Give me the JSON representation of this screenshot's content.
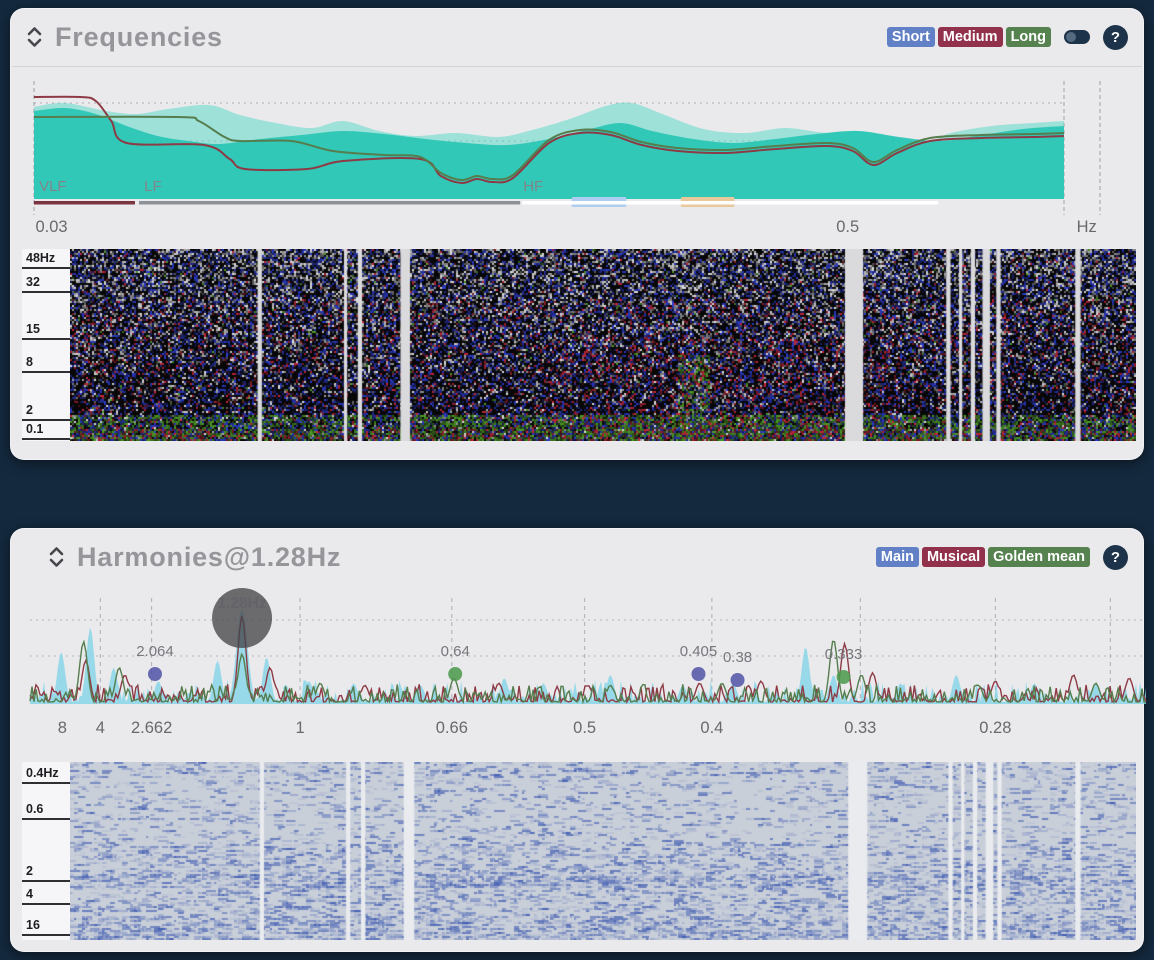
{
  "page": {
    "background": "#14293e"
  },
  "frequencies": {
    "title": "Frequencies",
    "help_label": "?",
    "legend": [
      {
        "label": "Short",
        "color": "#6180c5"
      },
      {
        "label": "Medium",
        "color": "#91314b"
      },
      {
        "label": "Long",
        "color": "#55824f"
      }
    ],
    "chart": {
      "colors": {
        "teal_front": "#23c4b2",
        "teal_back": "#5cd8c6",
        "red": "#8e3a45",
        "green": "#557d4d",
        "grid": "#9aa0a8"
      },
      "band_labels": [
        {
          "text": "VLF",
          "x": 0.003
        },
        {
          "text": "LF",
          "x": 0.105
        },
        {
          "text": "HF",
          "x": 0.473
        }
      ],
      "x_ticks": [
        {
          "text": "0.03",
          "x": 0.017
        },
        {
          "text": "0.5",
          "x": 0.79
        },
        {
          "text": "Hz",
          "x": 1.022
        }
      ],
      "series": {
        "teal_back": [
          [
            0,
            26
          ],
          [
            0.03,
            22
          ],
          [
            0.07,
            30
          ],
          [
            0.1,
            33
          ],
          [
            0.13,
            28
          ],
          [
            0.17,
            24
          ],
          [
            0.2,
            34
          ],
          [
            0.235,
            42
          ],
          [
            0.27,
            47
          ],
          [
            0.3,
            40
          ],
          [
            0.335,
            50
          ],
          [
            0.37,
            55
          ],
          [
            0.41,
            52
          ],
          [
            0.45,
            56
          ],
          [
            0.48,
            50
          ],
          [
            0.52,
            38
          ],
          [
            0.555,
            25
          ],
          [
            0.58,
            22
          ],
          [
            0.61,
            33
          ],
          [
            0.65,
            48
          ],
          [
            0.69,
            52
          ],
          [
            0.73,
            47
          ],
          [
            0.77,
            52
          ],
          [
            0.8,
            50
          ],
          [
            0.83,
            55
          ],
          [
            0.865,
            62
          ],
          [
            0.89,
            52
          ],
          [
            0.93,
            45
          ],
          [
            0.97,
            42
          ],
          [
            1,
            40
          ]
        ],
        "teal_front": [
          [
            0,
            30
          ],
          [
            0.03,
            27
          ],
          [
            0.06,
            33
          ],
          [
            0.09,
            45
          ],
          [
            0.12,
            55
          ],
          [
            0.15,
            60
          ],
          [
            0.18,
            63
          ],
          [
            0.22,
            58
          ],
          [
            0.26,
            54
          ],
          [
            0.3,
            50
          ],
          [
            0.34,
            53
          ],
          [
            0.38,
            58
          ],
          [
            0.42,
            62
          ],
          [
            0.46,
            64
          ],
          [
            0.5,
            58
          ],
          [
            0.54,
            48
          ],
          [
            0.57,
            42
          ],
          [
            0.6,
            50
          ],
          [
            0.64,
            58
          ],
          [
            0.68,
            62
          ],
          [
            0.72,
            58
          ],
          [
            0.76,
            53
          ],
          [
            0.8,
            50
          ],
          [
            0.84,
            56
          ],
          [
            0.88,
            60
          ],
          [
            0.92,
            54
          ],
          [
            0.96,
            48
          ],
          [
            1,
            45
          ]
        ],
        "red_line": [
          [
            0,
            16
          ],
          [
            0.045,
            16
          ],
          [
            0.06,
            20
          ],
          [
            0.075,
            40
          ],
          [
            0.09,
            62
          ],
          [
            0.165,
            64
          ],
          [
            0.19,
            78
          ],
          [
            0.205,
            88
          ],
          [
            0.265,
            88
          ],
          [
            0.3,
            80
          ],
          [
            0.375,
            78
          ],
          [
            0.395,
            95
          ],
          [
            0.415,
            102
          ],
          [
            0.43,
            98
          ],
          [
            0.445,
            101
          ],
          [
            0.465,
            97
          ],
          [
            0.5,
            62
          ],
          [
            0.53,
            52
          ],
          [
            0.56,
            54
          ],
          [
            0.59,
            64
          ],
          [
            0.625,
            70
          ],
          [
            0.67,
            72
          ],
          [
            0.72,
            68
          ],
          [
            0.77,
            65
          ],
          [
            0.795,
            70
          ],
          [
            0.815,
            84
          ],
          [
            0.838,
            72
          ],
          [
            0.87,
            60
          ],
          [
            0.92,
            57
          ],
          [
            0.97,
            56
          ],
          [
            1,
            55
          ]
        ],
        "green_line": [
          [
            0,
            36
          ],
          [
            0.14,
            36
          ],
          [
            0.16,
            40
          ],
          [
            0.185,
            56
          ],
          [
            0.2,
            60
          ],
          [
            0.25,
            60
          ],
          [
            0.29,
            70
          ],
          [
            0.34,
            74
          ],
          [
            0.375,
            76
          ],
          [
            0.395,
            92
          ],
          [
            0.415,
            99
          ],
          [
            0.43,
            95
          ],
          [
            0.445,
            98
          ],
          [
            0.465,
            94
          ],
          [
            0.5,
            59
          ],
          [
            0.53,
            49
          ],
          [
            0.56,
            51
          ],
          [
            0.59,
            61
          ],
          [
            0.625,
            67
          ],
          [
            0.67,
            69
          ],
          [
            0.72,
            65
          ],
          [
            0.77,
            62
          ],
          [
            0.795,
            67
          ],
          [
            0.815,
            81
          ],
          [
            0.838,
            69
          ],
          [
            0.87,
            57
          ],
          [
            0.92,
            54
          ],
          [
            0.97,
            53
          ],
          [
            1,
            52
          ]
        ]
      },
      "band_bars": [
        {
          "x0": 0.0,
          "x1": 0.098,
          "color": "#7c3440"
        },
        {
          "x0": 0.102,
          "x1": 0.472,
          "color": "#8d9298"
        },
        {
          "x0": 0.474,
          "x1": 0.878,
          "color": "#ffffff"
        }
      ],
      "markers": [
        {
          "x0": 0.522,
          "x1": 0.575,
          "color": "#aecdf0"
        },
        {
          "x0": 0.628,
          "x1": 0.68,
          "color": "#e9c99c"
        }
      ]
    },
    "spectrogram": {
      "background": "#070707",
      "gap_color": "#dadadc",
      "y_ticks": [
        {
          "text": "48Hz",
          "y": 0.1
        },
        {
          "text": "32",
          "y": 0.225
        },
        {
          "text": "15",
          "y": 0.47
        },
        {
          "text": "8",
          "y": 0.64
        },
        {
          "text": "2",
          "y": 0.89
        },
        {
          "text": "0.1",
          "y": 0.99
        }
      ],
      "gaps": [
        [
          0.176,
          0.004
        ],
        [
          0.257,
          0.003
        ],
        [
          0.27,
          0.004
        ],
        [
          0.31,
          0.009
        ],
        [
          0.727,
          0.017
        ],
        [
          0.822,
          0.004
        ],
        [
          0.834,
          0.003
        ],
        [
          0.845,
          0.004
        ],
        [
          0.856,
          0.007
        ],
        [
          0.869,
          0.004
        ],
        [
          0.943,
          0.005
        ]
      ]
    }
  },
  "harmonies": {
    "title": "Harmonies@1.28Hz",
    "help_label": "?",
    "legend": [
      {
        "label": "Main",
        "color": "#6180c5"
      },
      {
        "label": "Musical",
        "color": "#91314b"
      },
      {
        "label": "Golden mean",
        "color": "#55824f"
      }
    ],
    "chart": {
      "colors": {
        "cyan": "#82d4e6",
        "red": "#8e3a45",
        "green": "#557d4d"
      },
      "main_peak": {
        "label": "1.28Hz",
        "x": 0.19
      },
      "annotations": [
        {
          "label": "2.064",
          "x": 0.112,
          "color": "#5456a8",
          "dy": 0
        },
        {
          "label": "0.64",
          "x": 0.381,
          "color": "#4e9a4e",
          "dy": 0
        },
        {
          "label": "0.405",
          "x": 0.599,
          "color": "#5456a8",
          "dy": 0
        },
        {
          "label": "0.38",
          "x": 0.634,
          "color": "#5456a8",
          "dy": 6
        },
        {
          "label": "0.333",
          "x": 0.729,
          "color": "#4e9a4e",
          "dy": 3
        }
      ],
      "x_ticks": [
        {
          "text": "8",
          "x": 0.029
        },
        {
          "text": "4",
          "x": 0.063
        },
        {
          "text": "2.662",
          "x": 0.109
        },
        {
          "text": "1",
          "x": 0.242
        },
        {
          "text": "0.66",
          "x": 0.378
        },
        {
          "text": "0.5",
          "x": 0.497
        },
        {
          "text": "0.4",
          "x": 0.611
        },
        {
          "text": "0.33",
          "x": 0.744
        },
        {
          "text": "0.28",
          "x": 0.865
        }
      ],
      "gridline_x": [
        0.063,
        0.109,
        0.242,
        0.378,
        0.497,
        0.611,
        0.744,
        0.865,
        0.968
      ],
      "peaks": {
        "cyan": [
          [
            0.028,
            0.5
          ],
          [
            0.054,
            0.74
          ],
          [
            0.075,
            0.35
          ],
          [
            0.115,
            0.22
          ],
          [
            0.168,
            0.42
          ],
          [
            0.19,
            0.92,
            0.007
          ],
          [
            0.212,
            0.45
          ],
          [
            0.25,
            0.22
          ],
          [
            0.29,
            0.2
          ],
          [
            0.35,
            0.18
          ],
          [
            0.425,
            0.25
          ],
          [
            0.46,
            0.2
          ],
          [
            0.52,
            0.28
          ],
          [
            0.585,
            0.18
          ],
          [
            0.63,
            0.2
          ],
          [
            0.695,
            0.55
          ],
          [
            0.72,
            0.28
          ],
          [
            0.78,
            0.2
          ],
          [
            0.83,
            0.28
          ],
          [
            0.9,
            0.2
          ],
          [
            0.955,
            0.18
          ]
        ],
        "red": [
          [
            0.05,
            0.42
          ],
          [
            0.085,
            0.28
          ],
          [
            0.19,
            0.85
          ],
          [
            0.215,
            0.35
          ],
          [
            0.3,
            0.18
          ],
          [
            0.42,
            0.2
          ],
          [
            0.5,
            0.18
          ],
          [
            0.6,
            0.2
          ],
          [
            0.655,
            0.22
          ],
          [
            0.73,
            0.58
          ],
          [
            0.755,
            0.3
          ],
          [
            0.865,
            0.22
          ],
          [
            0.935,
            0.28
          ],
          [
            0.985,
            0.25
          ]
        ],
        "green": [
          [
            0.048,
            0.6
          ],
          [
            0.08,
            0.35
          ],
          [
            0.19,
            0.48
          ],
          [
            0.26,
            0.2
          ],
          [
            0.38,
            0.25
          ],
          [
            0.52,
            0.18
          ],
          [
            0.62,
            0.2
          ],
          [
            0.72,
            0.62
          ],
          [
            0.745,
            0.28
          ],
          [
            0.85,
            0.18
          ],
          [
            0.955,
            0.2
          ]
        ]
      }
    },
    "spectrogram": {
      "background": "#c9cfd9",
      "streak_color": "38,70,170",
      "gap_color": "#e9ebee",
      "y_ticks": [
        {
          "text": "0.4Hz",
          "y": 0.12
        },
        {
          "text": "0.6",
          "y": 0.32
        },
        {
          "text": "2",
          "y": 0.67
        },
        {
          "text": "4",
          "y": 0.8
        },
        {
          "text": "16",
          "y": 0.97
        }
      ],
      "gaps": [
        [
          0.178,
          0.004
        ],
        [
          0.259,
          0.004
        ],
        [
          0.273,
          0.004
        ],
        [
          0.313,
          0.01
        ],
        [
          0.73,
          0.018
        ],
        [
          0.824,
          0.004
        ],
        [
          0.836,
          0.003
        ],
        [
          0.847,
          0.004
        ],
        [
          0.859,
          0.007
        ],
        [
          0.87,
          0.004
        ],
        [
          0.943,
          0.005
        ]
      ]
    }
  }
}
